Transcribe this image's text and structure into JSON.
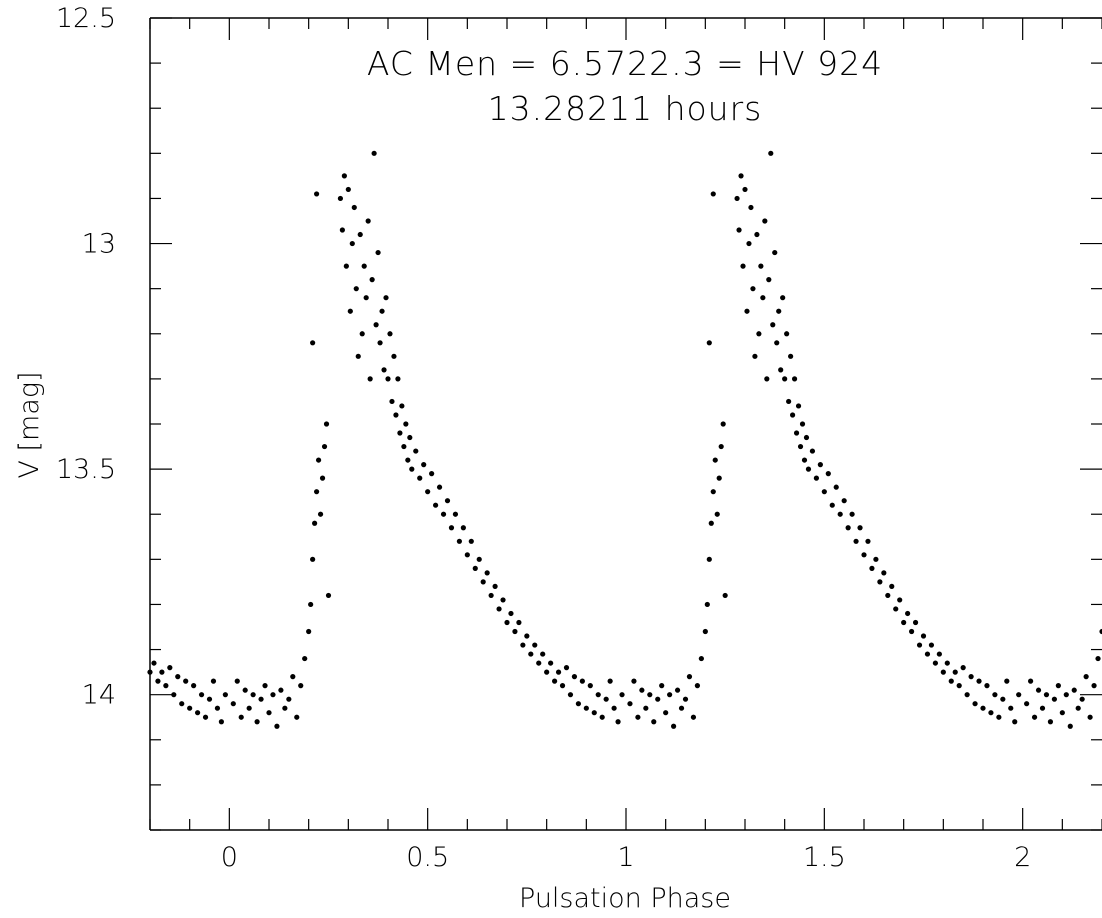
{
  "chart_data": {
    "type": "scatter",
    "title": "AC Men = 6.5722.3 = HV 924",
    "subtitle": "13.28211 hours",
    "xlabel": "Pulsation Phase",
    "ylabel": "V [mag]",
    "xlim": [
      -0.2,
      2.2
    ],
    "ylim": [
      14.3,
      12.5
    ],
    "y_inverted": true,
    "x_ticks": [
      0,
      0.5,
      1,
      1.5,
      2
    ],
    "x_tick_labels": [
      "0",
      "0.5",
      "1",
      "1.5",
      "2"
    ],
    "y_ticks": [
      12.5,
      13,
      13.5,
      14
    ],
    "y_tick_labels": [
      "12.5",
      "13",
      "13.5",
      "14"
    ],
    "grid": false,
    "legend": "none",
    "marker_color": "#000000",
    "series": [
      {
        "points_per_cycle_phase_mag": [
          [
            0.01,
            14.02
          ],
          [
            0.02,
            13.97
          ],
          [
            0.03,
            14.05
          ],
          [
            0.04,
            13.99
          ],
          [
            0.05,
            14.03
          ],
          [
            0.06,
            14.0
          ],
          [
            0.07,
            14.06
          ],
          [
            0.08,
            14.01
          ],
          [
            0.09,
            13.98
          ],
          [
            0.1,
            14.04
          ],
          [
            0.11,
            14.0
          ],
          [
            0.12,
            14.07
          ],
          [
            0.13,
            13.99
          ],
          [
            0.14,
            14.03
          ],
          [
            0.15,
            14.01
          ],
          [
            0.16,
            13.96
          ],
          [
            0.17,
            14.05
          ],
          [
            0.18,
            13.98
          ],
          [
            0.19,
            13.92
          ],
          [
            0.2,
            13.86
          ],
          [
            0.205,
            13.8
          ],
          [
            0.21,
            13.7
          ],
          [
            0.215,
            13.62
          ],
          [
            0.22,
            13.55
          ],
          [
            0.225,
            13.48
          ],
          [
            0.23,
            13.6
          ],
          [
            0.235,
            13.52
          ],
          [
            0.24,
            13.45
          ],
          [
            0.245,
            13.4
          ],
          [
            0.25,
            13.78
          ],
          [
            0.21,
            13.22
          ],
          [
            0.22,
            12.89
          ],
          [
            0.28,
            12.9
          ],
          [
            0.285,
            12.97
          ],
          [
            0.29,
            12.85
          ],
          [
            0.295,
            13.05
          ],
          [
            0.3,
            12.88
          ],
          [
            0.305,
            13.15
          ],
          [
            0.31,
            13.0
          ],
          [
            0.315,
            12.92
          ],
          [
            0.32,
            13.1
          ],
          [
            0.325,
            13.25
          ],
          [
            0.33,
            12.98
          ],
          [
            0.335,
            13.2
          ],
          [
            0.34,
            13.05
          ],
          [
            0.345,
            13.12
          ],
          [
            0.35,
            12.95
          ],
          [
            0.355,
            13.3
          ],
          [
            0.36,
            13.08
          ],
          [
            0.365,
            12.8
          ],
          [
            0.37,
            13.18
          ],
          [
            0.375,
            13.02
          ],
          [
            0.38,
            13.22
          ],
          [
            0.385,
            13.15
          ],
          [
            0.39,
            13.28
          ],
          [
            0.395,
            13.12
          ],
          [
            0.4,
            13.3
          ],
          [
            0.405,
            13.2
          ],
          [
            0.41,
            13.35
          ],
          [
            0.415,
            13.25
          ],
          [
            0.42,
            13.38
          ],
          [
            0.425,
            13.3
          ],
          [
            0.43,
            13.42
          ],
          [
            0.435,
            13.36
          ],
          [
            0.44,
            13.45
          ],
          [
            0.445,
            13.4
          ],
          [
            0.45,
            13.48
          ],
          [
            0.455,
            13.43
          ],
          [
            0.46,
            13.5
          ],
          [
            0.47,
            13.46
          ],
          [
            0.48,
            13.52
          ],
          [
            0.49,
            13.49
          ],
          [
            0.5,
            13.55
          ],
          [
            0.51,
            13.51
          ],
          [
            0.52,
            13.58
          ],
          [
            0.53,
            13.54
          ],
          [
            0.54,
            13.6
          ],
          [
            0.55,
            13.57
          ],
          [
            0.56,
            13.63
          ],
          [
            0.57,
            13.6
          ],
          [
            0.58,
            13.66
          ],
          [
            0.59,
            13.63
          ],
          [
            0.6,
            13.69
          ],
          [
            0.61,
            13.66
          ],
          [
            0.62,
            13.72
          ],
          [
            0.63,
            13.7
          ],
          [
            0.64,
            13.75
          ],
          [
            0.65,
            13.73
          ],
          [
            0.66,
            13.78
          ],
          [
            0.67,
            13.76
          ],
          [
            0.68,
            13.81
          ],
          [
            0.69,
            13.79
          ],
          [
            0.7,
            13.84
          ],
          [
            0.71,
            13.82
          ],
          [
            0.72,
            13.86
          ],
          [
            0.73,
            13.84
          ],
          [
            0.74,
            13.89
          ],
          [
            0.75,
            13.87
          ],
          [
            0.76,
            13.91
          ],
          [
            0.77,
            13.89
          ],
          [
            0.78,
            13.93
          ],
          [
            0.79,
            13.91
          ],
          [
            0.8,
            13.95
          ],
          [
            0.81,
            13.93
          ],
          [
            0.82,
            13.97
          ],
          [
            0.83,
            13.95
          ],
          [
            0.84,
            13.98
          ],
          [
            0.85,
            13.94
          ],
          [
            0.86,
            14.0
          ],
          [
            0.87,
            13.96
          ],
          [
            0.88,
            14.02
          ],
          [
            0.89,
            13.97
          ],
          [
            0.9,
            14.03
          ],
          [
            0.91,
            13.98
          ],
          [
            0.92,
            14.04
          ],
          [
            0.93,
            14.0
          ],
          [
            0.94,
            14.05
          ],
          [
            0.95,
            14.01
          ],
          [
            0.96,
            13.97
          ],
          [
            0.97,
            14.03
          ],
          [
            0.98,
            14.06
          ],
          [
            0.99,
            14.0
          ]
        ]
      }
    ]
  }
}
